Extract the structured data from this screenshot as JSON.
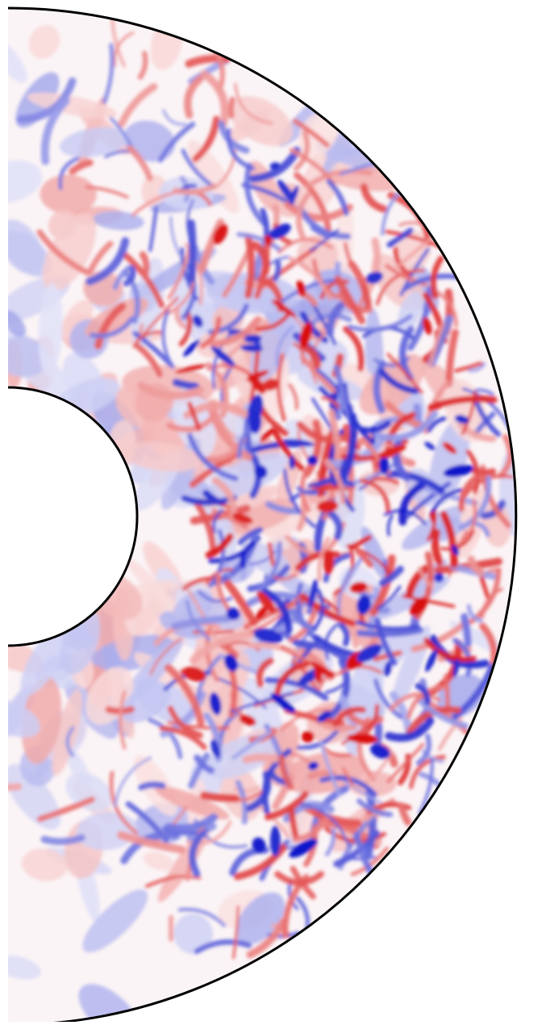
{
  "figure": {
    "kind": "meridional-slice",
    "colormap": {
      "name": "blue-white-red",
      "negative": "#0a12c8",
      "zero": "#ffffff",
      "positive": "#d80a0a"
    },
    "outline_color": "#000000",
    "field_seed": 7
  }
}
